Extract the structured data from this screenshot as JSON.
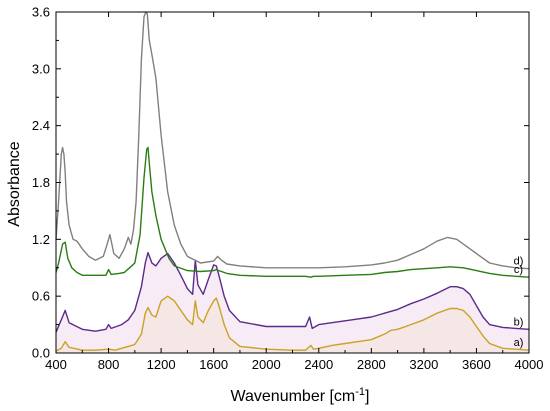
{
  "chart_data": {
    "type": "line",
    "xlabel": "Wavenumber [cm",
    "xlabel_sup": "-1",
    "xlabel_end": "]",
    "ylabel": "Absorbance",
    "xlim": [
      400,
      4000
    ],
    "ylim": [
      0,
      3.6
    ],
    "xticks": [
      400,
      800,
      1200,
      1600,
      2000,
      2400,
      2800,
      3200,
      3600,
      4000
    ],
    "yticks": [
      0.0,
      0.6,
      1.2,
      1.8,
      2.4,
      3.0,
      3.6
    ],
    "xtick_labels": [
      "400",
      "800",
      "1200",
      "1600",
      "2000",
      "2400",
      "2800",
      "3200",
      "3600",
      "4000"
    ],
    "ytick_labels": [
      "0.0",
      "0.6",
      "1.2",
      "1.8",
      "2.4",
      "3.0",
      "3.6"
    ],
    "grid": false,
    "series": [
      {
        "name": "a)",
        "color": "#c9a227",
        "fill": "#f6e9b8",
        "x": [
          400,
          440,
          470,
          500,
          600,
          700,
          800,
          850,
          900,
          950,
          1000,
          1050,
          1080,
          1100,
          1130,
          1160,
          1200,
          1250,
          1300,
          1350,
          1400,
          1440,
          1460,
          1480,
          1520,
          1560,
          1600,
          1620,
          1640,
          1680,
          1720,
          1800,
          2000,
          2200,
          2300,
          2340,
          2360,
          2400,
          2500,
          2600,
          2700,
          2800,
          2900,
          2950,
          3000,
          3100,
          3200,
          3300,
          3400,
          3450,
          3500,
          3550,
          3600,
          3650,
          3700,
          3800,
          3900,
          4000
        ],
        "y": [
          0.02,
          0.05,
          0.12,
          0.06,
          0.03,
          0.03,
          0.04,
          0.03,
          0.05,
          0.07,
          0.09,
          0.2,
          0.42,
          0.48,
          0.4,
          0.38,
          0.55,
          0.6,
          0.55,
          0.45,
          0.35,
          0.3,
          0.55,
          0.38,
          0.32,
          0.45,
          0.55,
          0.58,
          0.5,
          0.3,
          0.16,
          0.07,
          0.04,
          0.03,
          0.03,
          0.08,
          0.04,
          0.05,
          0.08,
          0.1,
          0.12,
          0.14,
          0.2,
          0.24,
          0.25,
          0.3,
          0.35,
          0.42,
          0.47,
          0.47,
          0.45,
          0.38,
          0.28,
          0.18,
          0.1,
          0.05,
          0.04,
          0.03
        ]
      },
      {
        "name": "b)",
        "color": "#5b2a8c",
        "fill": "#f3e3f1",
        "x": [
          400,
          440,
          470,
          500,
          600,
          700,
          780,
          800,
          820,
          900,
          950,
          1000,
          1050,
          1080,
          1100,
          1130,
          1160,
          1200,
          1250,
          1300,
          1350,
          1400,
          1440,
          1460,
          1480,
          1520,
          1560,
          1600,
          1620,
          1640,
          1680,
          1720,
          1800,
          2000,
          2200,
          2300,
          2330,
          2350,
          2400,
          2500,
          2600,
          2700,
          2800,
          2900,
          3000,
          3100,
          3200,
          3300,
          3400,
          3450,
          3500,
          3550,
          3600,
          3650,
          3700,
          3800,
          3900,
          4000
        ],
        "y": [
          0.22,
          0.35,
          0.45,
          0.32,
          0.25,
          0.23,
          0.25,
          0.3,
          0.26,
          0.3,
          0.35,
          0.45,
          0.7,
          0.95,
          1.06,
          0.95,
          0.92,
          1.0,
          1.05,
          0.95,
          0.82,
          0.68,
          0.62,
          0.98,
          0.72,
          0.62,
          0.78,
          0.93,
          0.92,
          0.82,
          0.6,
          0.45,
          0.33,
          0.28,
          0.28,
          0.28,
          0.38,
          0.26,
          0.3,
          0.32,
          0.34,
          0.36,
          0.38,
          0.42,
          0.46,
          0.52,
          0.57,
          0.63,
          0.7,
          0.7,
          0.68,
          0.62,
          0.5,
          0.38,
          0.3,
          0.27,
          0.26,
          0.25
        ]
      },
      {
        "name": "c)",
        "color": "#2a7d14",
        "x": [
          400,
          420,
          450,
          470,
          490,
          520,
          560,
          600,
          700,
          780,
          800,
          820,
          880,
          920,
          960,
          1000,
          1040,
          1070,
          1090,
          1100,
          1110,
          1130,
          1160,
          1200,
          1260,
          1300,
          1400,
          1500,
          1600,
          1620,
          1640,
          1700,
          1800,
          2000,
          2200,
          2300,
          2340,
          2360,
          2400,
          2600,
          2800,
          2900,
          3000,
          3100,
          3200,
          3300,
          3400,
          3500,
          3600,
          3700,
          3800,
          3900,
          4000
        ],
        "y": [
          0.85,
          0.95,
          1.15,
          1.17,
          1.0,
          0.9,
          0.85,
          0.82,
          0.82,
          0.82,
          0.88,
          0.83,
          0.84,
          0.85,
          0.9,
          0.95,
          1.25,
          1.85,
          2.15,
          2.17,
          2.0,
          1.7,
          1.45,
          1.2,
          1.0,
          0.92,
          0.87,
          0.86,
          0.87,
          0.88,
          0.87,
          0.84,
          0.82,
          0.81,
          0.81,
          0.81,
          0.8,
          0.81,
          0.81,
          0.82,
          0.83,
          0.85,
          0.86,
          0.88,
          0.89,
          0.9,
          0.91,
          0.9,
          0.87,
          0.84,
          0.82,
          0.81,
          0.8
        ]
      },
      {
        "name": "d)",
        "color": "#808080",
        "x": [
          400,
          410,
          420,
          440,
          450,
          460,
          470,
          480,
          500,
          530,
          560,
          600,
          650,
          700,
          760,
          790,
          810,
          840,
          880,
          920,
          950,
          970,
          990,
          1010,
          1030,
          1050,
          1070,
          1085,
          1095,
          1110,
          1130,
          1160,
          1200,
          1250,
          1300,
          1350,
          1400,
          1500,
          1600,
          1630,
          1660,
          1700,
          1800,
          2000,
          2200,
          2300,
          2400,
          2600,
          2800,
          2900,
          3000,
          3100,
          3200,
          3300,
          3380,
          3450,
          3500,
          3550,
          3600,
          3650,
          3700,
          3800,
          3900,
          4000
        ],
        "y": [
          1.2,
          1.4,
          1.6,
          2.1,
          2.17,
          2.1,
          1.9,
          1.6,
          1.35,
          1.2,
          1.18,
          1.1,
          1.02,
          0.98,
          1.02,
          1.15,
          1.25,
          1.05,
          1.0,
          1.1,
          1.22,
          1.15,
          1.3,
          1.6,
          2.3,
          3.1,
          3.55,
          3.6,
          3.58,
          3.3,
          3.15,
          2.9,
          2.3,
          1.7,
          1.35,
          1.15,
          1.02,
          0.95,
          0.97,
          1.02,
          0.98,
          0.94,
          0.92,
          0.9,
          0.9,
          0.9,
          0.9,
          0.91,
          0.93,
          0.95,
          0.98,
          1.04,
          1.1,
          1.18,
          1.22,
          1.2,
          1.15,
          1.1,
          1.05,
          1.0,
          0.95,
          0.92,
          0.9,
          0.89
        ]
      }
    ]
  }
}
